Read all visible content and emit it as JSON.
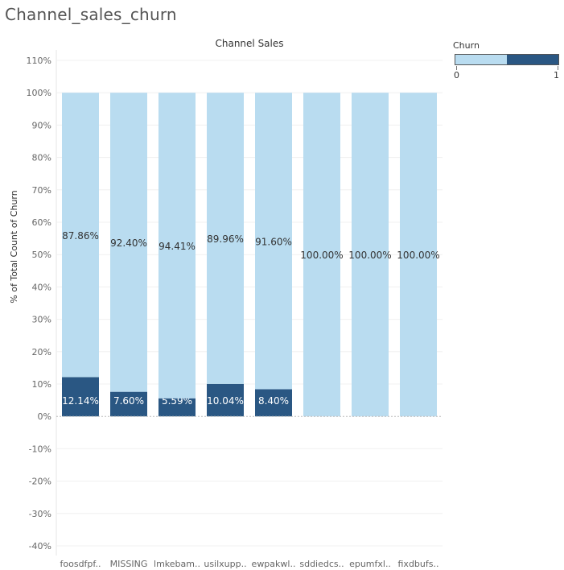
{
  "page_title": "Channel_sales_churn",
  "legend": {
    "title": "Churn",
    "min_label": "0",
    "max_label": "1",
    "colors": [
      "#b9dcf0",
      "#2a5783"
    ]
  },
  "chart_data": {
    "type": "bar",
    "stacked": true,
    "title": "Channel Sales",
    "ylabel": "% of Total Count of Churn",
    "ylim": [
      -40,
      110
    ],
    "y_ticks": [
      110,
      100,
      90,
      80,
      70,
      60,
      50,
      40,
      30,
      20,
      10,
      0,
      -10,
      -20,
      -30,
      -40
    ],
    "y_tick_labels": [
      "110%",
      "100%",
      "90%",
      "80%",
      "70%",
      "60%",
      "50%",
      "40%",
      "30%",
      "20%",
      "10%",
      "0%",
      "-10%",
      "-20%",
      "-30%",
      "-40%"
    ],
    "categories": [
      "foosdfpf..",
      "MISSING",
      "lmkebam..",
      "usilxupp..",
      "ewpakwl..",
      "sddiedcs..",
      "epumfxl..",
      "fixdbufs.."
    ],
    "series": [
      {
        "name": "1",
        "color": "#2a5783",
        "values": [
          12.14,
          7.6,
          5.59,
          10.04,
          8.4,
          0,
          0,
          0
        ],
        "labels": [
          "12.14%",
          "7.60%",
          "5.59%",
          "10.04%",
          "8.40%",
          "",
          "",
          ""
        ]
      },
      {
        "name": "0",
        "color": "#b9dcf0",
        "values": [
          87.86,
          92.4,
          94.41,
          89.96,
          91.6,
          100,
          100,
          100
        ],
        "labels": [
          "87.86%",
          "92.40%",
          "94.41%",
          "89.96%",
          "91.60%",
          "100.00%",
          "100.00%",
          "100.00%"
        ]
      }
    ],
    "grid": true,
    "legend_position": "top-right"
  }
}
